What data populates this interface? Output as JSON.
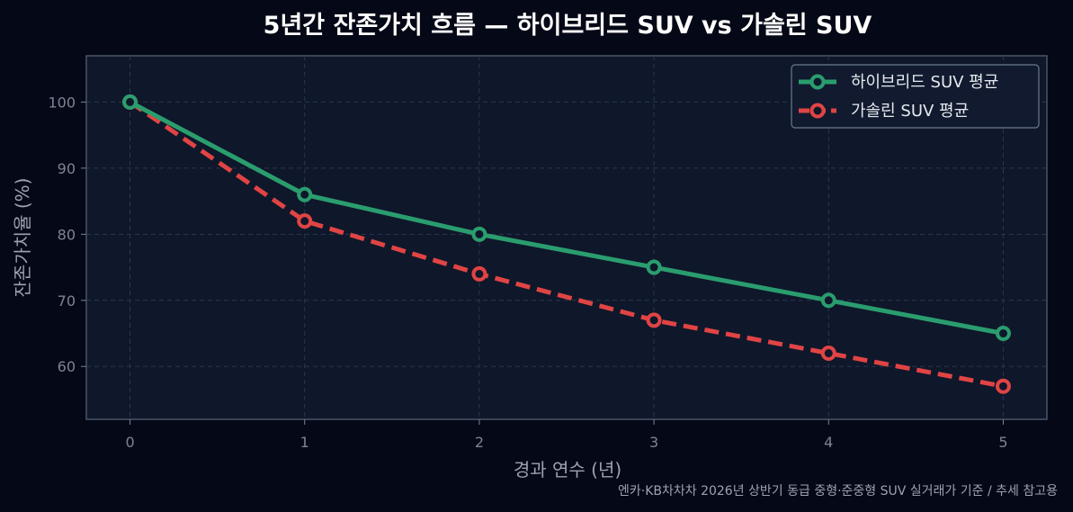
{
  "chart_data": {
    "type": "line",
    "title": "5년간 잔존가치 흐름 — 하이브리드 SUV vs 가솔린 SUV",
    "xlabel": "경과 연수 (년)",
    "ylabel": "잔존가치율 (%)",
    "x": [
      0,
      1,
      2,
      3,
      4,
      5
    ],
    "xlim": [
      -0.25,
      5.25
    ],
    "ylim": [
      52,
      107
    ],
    "yticks": [
      60,
      70,
      80,
      90,
      100
    ],
    "grid": true,
    "legend_position": "top-right",
    "series": [
      {
        "name": "하이브리드 SUV 평균",
        "values": [
          100,
          86,
          80,
          75,
          70,
          65
        ],
        "color": "#2a9d6e",
        "style": "solid"
      },
      {
        "name": "가솔린 SUV 평균",
        "values": [
          100,
          82,
          74,
          67,
          62,
          57
        ],
        "color": "#e04444",
        "style": "dashed"
      }
    ],
    "footnote": "엔카·KB차차차 2026년 상반기 동급 중형·준중형 SUV 실거래가 기준 / 추세 참고용"
  },
  "colors": {
    "background": "#050816",
    "plot_background": "#0f172a",
    "plot_border": "#4a5568",
    "legend_border": "#6b7a90"
  }
}
